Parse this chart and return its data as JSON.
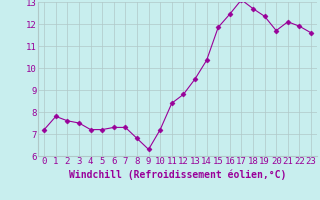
{
  "x": [
    0,
    1,
    2,
    3,
    4,
    5,
    6,
    7,
    8,
    9,
    10,
    11,
    12,
    13,
    14,
    15,
    16,
    17,
    18,
    19,
    20,
    21,
    22,
    23
  ],
  "y": [
    7.2,
    7.8,
    7.6,
    7.5,
    7.2,
    7.2,
    7.3,
    7.3,
    6.8,
    6.3,
    7.2,
    8.4,
    8.8,
    9.5,
    10.35,
    11.85,
    12.45,
    13.1,
    12.7,
    12.35,
    11.7,
    12.1,
    11.9,
    11.6
  ],
  "color": "#990099",
  "bg_color": "#c8eeee",
  "grid_color": "#b0c8c8",
  "xlabel": "Windchill (Refroidissement éolien,°C)",
  "ylim": [
    6,
    13
  ],
  "yticks": [
    6,
    7,
    8,
    9,
    10,
    11,
    12,
    13
  ],
  "xticks": [
    0,
    1,
    2,
    3,
    4,
    5,
    6,
    7,
    8,
    9,
    10,
    11,
    12,
    13,
    14,
    15,
    16,
    17,
    18,
    19,
    20,
    21,
    22,
    23
  ],
  "marker": "D",
  "markersize": 2.5,
  "linewidth": 0.8,
  "xlabel_fontsize": 7,
  "tick_fontsize": 6.5,
  "tick_color": "#990099",
  "label_color": "#990099"
}
